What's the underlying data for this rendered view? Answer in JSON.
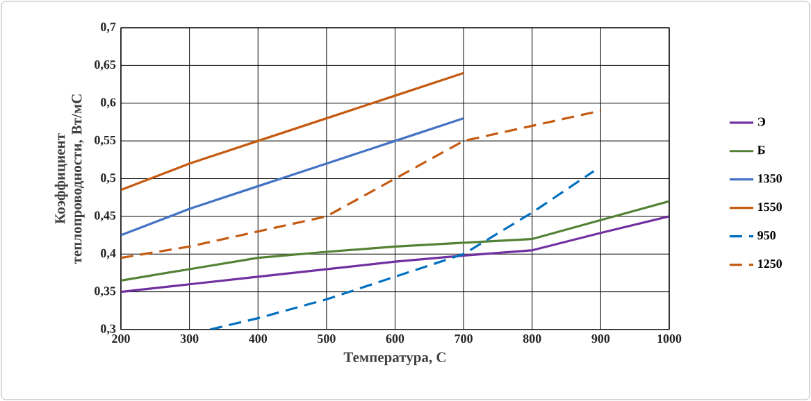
{
  "chart_data": {
    "type": "line",
    "xlabel": "Температура, С",
    "ylabel": "Коэффициент теплопроводности, Вт/мС",
    "x": [
      200,
      300,
      400,
      500,
      600,
      700,
      800,
      900,
      1000
    ],
    "xlim": [
      200,
      1000
    ],
    "xticks": [
      200,
      300,
      400,
      500,
      600,
      700,
      800,
      900,
      1000
    ],
    "ylim": [
      0.3,
      0.7
    ],
    "yticks": [
      {
        "value": 0.3,
        "label": "0,3"
      },
      {
        "value": 0.35,
        "label": "0,35"
      },
      {
        "value": 0.4,
        "label": "0,4"
      },
      {
        "value": 0.45,
        "label": "0,45"
      },
      {
        "value": 0.5,
        "label": "0,5"
      },
      {
        "value": 0.55,
        "label": "0,55"
      },
      {
        "value": 0.6,
        "label": "0,6"
      },
      {
        "value": 0.65,
        "label": "0,65"
      },
      {
        "value": 0.7,
        "label": "0,7"
      }
    ],
    "grid": true,
    "legend": "right",
    "marker": "none",
    "series": [
      {
        "name": "Э",
        "color": "#7030a0",
        "line_style": "solid",
        "values": [
          0.35,
          0.36,
          0.37,
          0.38,
          0.39,
          0.398,
          0.405,
          0.428,
          0.45
        ]
      },
      {
        "name": "Б",
        "color": "#548235",
        "line_style": "solid",
        "values": [
          0.365,
          0.38,
          0.395,
          0.403,
          0.41,
          0.415,
          0.42,
          0.445,
          0.47
        ]
      },
      {
        "name": "1350",
        "color": "#4472c4",
        "line_style": "solid",
        "x": [
          200,
          300,
          400,
          500,
          600,
          700
        ],
        "values": [
          0.425,
          0.46,
          0.49,
          0.52,
          0.55,
          0.58
        ]
      },
      {
        "name": "1550",
        "color": "#c55a11",
        "line_style": "solid",
        "x": [
          200,
          300,
          400,
          500,
          600,
          700
        ],
        "values": [
          0.485,
          0.52,
          0.55,
          0.58,
          0.61,
          0.64
        ]
      },
      {
        "name": "950",
        "color": "#0070c0",
        "line_style": "dashed",
        "x": [
          330,
          400,
          500,
          600,
          700,
          800,
          890
        ],
        "values": [
          0.3,
          0.315,
          0.34,
          0.37,
          0.4,
          0.455,
          0.51
        ]
      },
      {
        "name": "1250",
        "color": "#c55a11",
        "line_style": "dashed",
        "x": [
          200,
          300,
          400,
          500,
          600,
          700,
          800,
          900
        ],
        "values": [
          0.395,
          0.41,
          0.43,
          0.45,
          0.5,
          0.55,
          0.57,
          0.59
        ]
      }
    ]
  }
}
